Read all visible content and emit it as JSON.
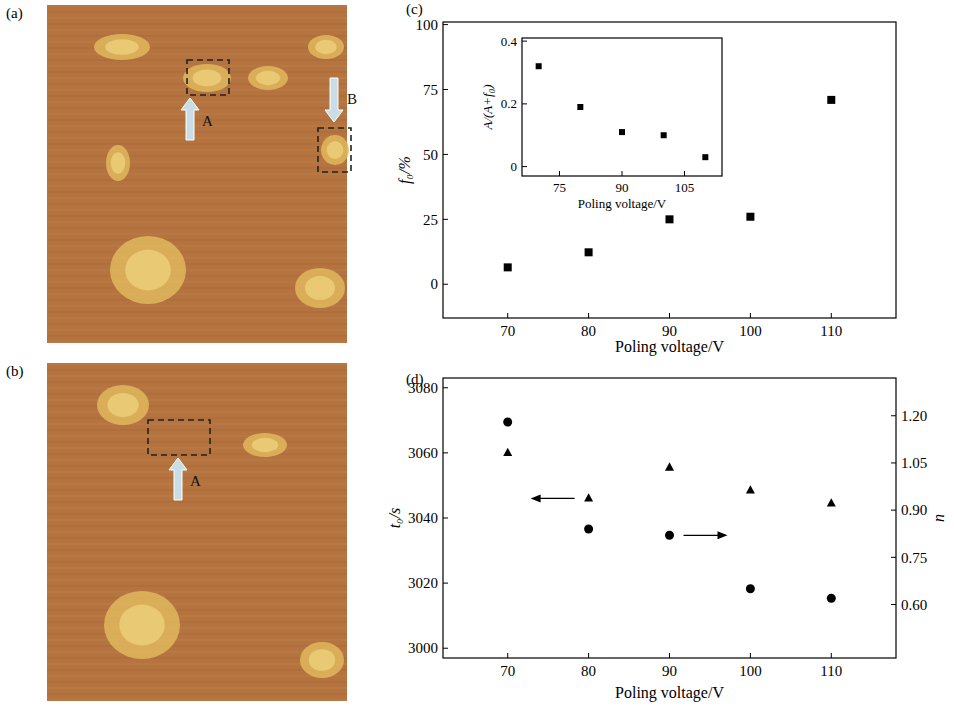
{
  "images": [
    {
      "panel": "(a)",
      "labels": [
        "A",
        "B"
      ]
    },
    {
      "panel": "(b)",
      "labels": [
        "A"
      ]
    }
  ],
  "chart_data": [
    {
      "type": "scatter",
      "panel": "(c)",
      "x_label": "Poling voltage/V",
      "y_label": "f₀/%",
      "x": [
        70,
        80,
        90,
        100,
        110
      ],
      "values": [
        6.5,
        12.3,
        25,
        26,
        71
      ],
      "marker": "square",
      "color": "#000000",
      "xlim": [
        62,
        118
      ],
      "ylim": [
        -13,
        101
      ],
      "xticks": [
        70,
        80,
        90,
        100,
        110
      ],
      "yticks": [
        0,
        25,
        50,
        75,
        100
      ],
      "inset": {
        "type": "scatter",
        "x_label": "Poling voltage/V",
        "y_label": "A/(A+f₀)",
        "x": [
          70,
          80,
          90,
          100,
          110
        ],
        "values": [
          0.32,
          0.19,
          0.11,
          0.1,
          0.03
        ],
        "marker": "square",
        "color": "#000000",
        "xlim": [
          66,
          114
        ],
        "ylim": [
          -0.03,
          0.41
        ],
        "xticks": [
          75,
          90,
          105
        ],
        "yticks": [
          0,
          0.2,
          0.4
        ]
      }
    },
    {
      "type": "scatter",
      "panel": "(d)",
      "x_label": "Poling voltage/V",
      "y_label": "t₀/s",
      "y2_label": "n",
      "x": [
        70,
        80,
        90,
        100,
        110
      ],
      "series": [
        {
          "values": [
            3060,
            3046,
            3055.5,
            3048.5,
            3044.5
          ],
          "marker": "triangle",
          "color": "#000000"
        },
        {
          "values": [
            1.18,
            0.84,
            0.82,
            0.65,
            0.62
          ],
          "marker": "circle",
          "color": "#000000",
          "axis": "y2"
        }
      ],
      "xlim": [
        62,
        118
      ],
      "ylim": [
        2997,
        3083
      ],
      "y2lim": [
        0.43,
        1.32
      ],
      "xticks": [
        70,
        80,
        90,
        100,
        110
      ],
      "yticks": [
        3000,
        3020,
        3040,
        3060,
        3080
      ],
      "y2ticks": [
        {
          "value": 0.6,
          "label": "0.60"
        },
        0.75,
        {
          "value": 0.9,
          "label": "0.90"
        },
        1.05,
        {
          "value": 1.2,
          "label": "1.20"
        }
      ]
    }
  ]
}
